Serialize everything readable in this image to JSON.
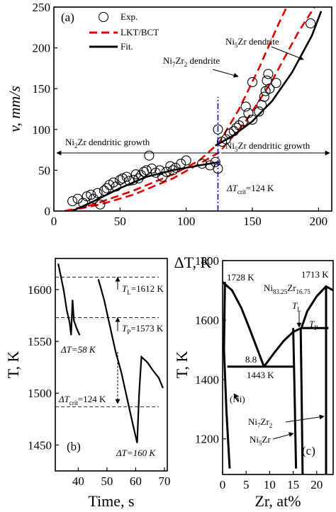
{
  "chart_data": [
    {
      "panel": "(a)",
      "type": "scatter",
      "xlabel": "ΔT, K",
      "ylabel": "v, mm/s",
      "xlim": [
        0,
        210
      ],
      "ylim": [
        0,
        250
      ],
      "xticks": [
        "0",
        "50",
        "100",
        "150",
        "200"
      ],
      "yticks": [
        "0",
        "50",
        "100",
        "150",
        "200",
        "250"
      ],
      "legend": {
        "position": "top-left",
        "entries": [
          "Exp.",
          "LKT/BCT",
          "Fit."
        ]
      },
      "series": [
        {
          "name": "Exp.",
          "kind": "scatter",
          "points": [
            [
              14,
              12
            ],
            [
              18,
              15
            ],
            [
              22,
              10
            ],
            [
              25,
              18
            ],
            [
              28,
              20
            ],
            [
              30,
              15
            ],
            [
              33,
              22
            ],
            [
              35,
              8
            ],
            [
              38,
              25
            ],
            [
              40,
              28
            ],
            [
              42,
              32
            ],
            [
              45,
              35
            ],
            [
              47,
              30
            ],
            [
              50,
              38
            ],
            [
              52,
              40
            ],
            [
              55,
              42
            ],
            [
              57,
              37
            ],
            [
              60,
              38
            ],
            [
              62,
              45
            ],
            [
              64,
              40
            ],
            [
              66,
              44
            ],
            [
              68,
              48
            ],
            [
              70,
              50
            ],
            [
              72,
              68
            ],
            [
              74,
              52
            ],
            [
              77,
              47
            ],
            [
              80,
              50
            ],
            [
              82,
              42
            ],
            [
              85,
              48
            ],
            [
              88,
              55
            ],
            [
              90,
              50
            ],
            [
              92,
              53
            ],
            [
              96,
              58
            ],
            [
              100,
              62
            ],
            [
              112,
              58
            ],
            [
              118,
              56
            ],
            [
              122,
              60
            ],
            [
              124,
              52
            ],
            [
              124,
              100
            ],
            [
              127,
              85
            ],
            [
              130,
              88
            ],
            [
              133,
              95
            ],
            [
              136,
              98
            ],
            [
              138,
              102
            ],
            [
              140,
              105
            ],
            [
              143,
              110
            ],
            [
              145,
              128
            ],
            [
              147,
              120
            ],
            [
              150,
              112
            ],
            [
              150,
              158
            ],
            [
              155,
              122
            ],
            [
              157,
              130
            ],
            [
              159,
              140
            ],
            [
              160,
              147
            ],
            [
              161,
              160
            ],
            [
              162,
              168
            ],
            [
              163,
              150
            ],
            [
              168,
              157
            ],
            [
              194,
              230
            ]
          ]
        },
        {
          "name": "LKT/BCT",
          "kind": "line",
          "points": [
            [
              8,
              0
            ],
            [
              30,
              8
            ],
            [
              60,
              25
            ],
            [
              90,
              45
            ],
            [
              110,
              62
            ],
            [
              125,
              84
            ],
            [
              140,
              125
            ],
            [
              155,
              175
            ],
            [
              170,
              230
            ],
            [
              176,
              250
            ]
          ]
        },
        {
          "name": "LKT/BCT",
          "kind": "line",
          "points": [
            [
              10,
              0
            ],
            [
              35,
              8
            ],
            [
              60,
              20
            ],
            [
              90,
              40
            ],
            [
              110,
              58
            ],
            [
              125,
              72
            ],
            [
              145,
              110
            ],
            [
              165,
              160
            ],
            [
              185,
              220
            ],
            [
              197,
              250
            ]
          ]
        },
        {
          "name": "Fit.",
          "kind": "line",
          "points": [
            [
              14,
              0
            ],
            [
              30,
              12
            ],
            [
              50,
              28
            ],
            [
              70,
              42
            ],
            [
              90,
              50
            ],
            [
              110,
              56
            ],
            [
              125,
              60
            ]
          ]
        },
        {
          "name": "Fit.",
          "kind": "line",
          "points": [
            [
              122,
              80
            ],
            [
              135,
              92
            ],
            [
              150,
              110
            ],
            [
              165,
              135
            ],
            [
              180,
              170
            ],
            [
              195,
              215
            ],
            [
              202,
              245
            ]
          ]
        }
      ],
      "critical_line": {
        "x": 124,
        "label_prefix": "ΔT",
        "label_sub": "crit",
        "label_value": "=124 K"
      },
      "annotations": {
        "ni2zr": "Ni",
        "ni2zr_sub": "2",
        "ni2zr_tail": "Zr dendritic growth",
        "ni5zr": "Ni",
        "ni5zr_sub": "5",
        "ni5zr_tail": "Zr dendritic growth",
        "ni5zr_dendrite": "Ni",
        "ni5zr_dendrite_sub": "5",
        "ni5zr_dendrite_tail": "Zr dendrite",
        "ni7zr2_dendrite": "Ni",
        "ni7zr2_dendrite_sub1": "7",
        "ni7zr2_dendrite_mid": "Zr",
        "ni7zr2_dendrite_sub2": "2",
        "ni7zr2_dendrite_tail": " dendrite"
      }
    },
    {
      "panel": "(b)",
      "type": "line",
      "xlabel": "Time, s",
      "ylabel": "T, K",
      "xlim": [
        32,
        71
      ],
      "ylim": [
        1425,
        1630
      ],
      "xticks": [
        "40",
        "50",
        "60",
        "70"
      ],
      "yticks": [
        "1450",
        "1500",
        "1550",
        "1600"
      ],
      "series": [
        {
          "name": "",
          "points": [
            [
              33,
              1625
            ],
            [
              34,
              1612
            ],
            [
              35,
              1598
            ],
            [
              36,
              1580
            ],
            [
              37,
              1568
            ],
            [
              37.5,
              1556
            ],
            [
              38,
              1590
            ],
            [
              38.5,
              1570
            ],
            [
              39.5,
              1562
            ],
            [
              40.5,
              1556
            ]
          ]
        },
        {
          "name": "",
          "points": [
            [
              47,
              1610
            ],
            [
              49,
              1590
            ],
            [
              51,
              1565
            ],
            [
              53,
              1540
            ],
            [
              55,
              1520
            ],
            [
              57,
              1495
            ],
            [
              59,
              1470
            ],
            [
              60.5,
              1452
            ],
            [
              61.2,
              1500
            ],
            [
              62,
              1535
            ],
            [
              64,
              1530
            ],
            [
              66,
              1522
            ],
            [
              68,
              1515
            ],
            [
              69.5,
              1505
            ]
          ]
        }
      ],
      "reference_levels": [
        1612,
        1573,
        1487
      ],
      "labels": {
        "tl": "T",
        "tl_sub": "L",
        "tl_val": "=1612 K",
        "tp": "T",
        "tp_sub": "P",
        "tp_val": "=1573 K",
        "dtcrit": "ΔT",
        "dtcrit_sub": "crit",
        "dtcrit_val": "=124 K",
        "dt58": "ΔT=58 K",
        "dt160": "ΔT=160 K"
      }
    },
    {
      "panel": "(c)",
      "type": "line",
      "xlabel": "Zr, at%",
      "ylabel": "T, K",
      "xlim": [
        0,
        23.5
      ],
      "ylim": [
        1080,
        1800
      ],
      "xticks": [
        "0",
        "5",
        "10",
        "15",
        "20"
      ],
      "yticks": [
        "1200",
        "1400",
        "1600",
        "1800"
      ],
      "series": [
        {
          "name": "",
          "points": [
            [
              0,
              1728
            ],
            [
              2,
              1700
            ],
            [
              4,
              1640
            ],
            [
              6,
              1560
            ],
            [
              8.8,
              1443
            ]
          ]
        },
        {
          "name": "",
          "points": [
            [
              8.8,
              1443
            ],
            [
              11,
              1490
            ],
            [
              13,
              1530
            ],
            [
              15,
              1560
            ],
            [
              16.75,
              1573
            ]
          ]
        },
        {
          "name": "",
          "points": [
            [
              16.75,
              1573
            ],
            [
              18,
              1630
            ],
            [
              20,
              1680
            ],
            [
              22,
              1713
            ],
            [
              23.5,
              1700
            ]
          ]
        },
        {
          "name": "",
          "points": [
            [
              0.5,
              1728
            ],
            [
              0.3,
              1500
            ],
            [
              0.8,
              1300
            ],
            [
              1.5,
              1100
            ]
          ]
        },
        {
          "name": "",
          "points": [
            [
              15,
              1573
            ],
            [
              15.3,
              1350
            ],
            [
              15.6,
              1100
            ]
          ]
        },
        {
          "name": "",
          "points": [
            [
              16.6,
              1573
            ],
            [
              16.8,
              1350
            ],
            [
              17,
              1080
            ]
          ]
        },
        {
          "name": "",
          "points": [
            [
              22,
              1713
            ],
            [
              22,
              1080
            ]
          ]
        }
      ],
      "hlines": [
        [
          1,
          15,
          1443
        ],
        [
          16.75,
          22.5,
          1573
        ]
      ],
      "labels": {
        "t1728": "1728 K",
        "t1713": "1713 K",
        "t1443": "1443 K",
        "e88": "8.8",
        "comp": "Ni",
        "comp_sub1": "83.25",
        "comp_mid": "Zr",
        "comp_sub2": "16.75",
        "tl": "T",
        "tl_sub": "L",
        "tp": "T",
        "tp_sub": "P",
        "ni": "(Ni)",
        "ni7zr2": "Ni",
        "ni7zr2_s1": "7",
        "ni7zr2_mid": "Zr",
        "ni7zr2_s2": "2",
        "ni5zr": "Ni",
        "ni5zr_s1": "5",
        "ni5zr_tail": "Zr"
      }
    }
  ],
  "colors": {
    "exp": "#000000",
    "lkt": "#e00000",
    "fit": "#000000",
    "crit": "#1010c8"
  }
}
